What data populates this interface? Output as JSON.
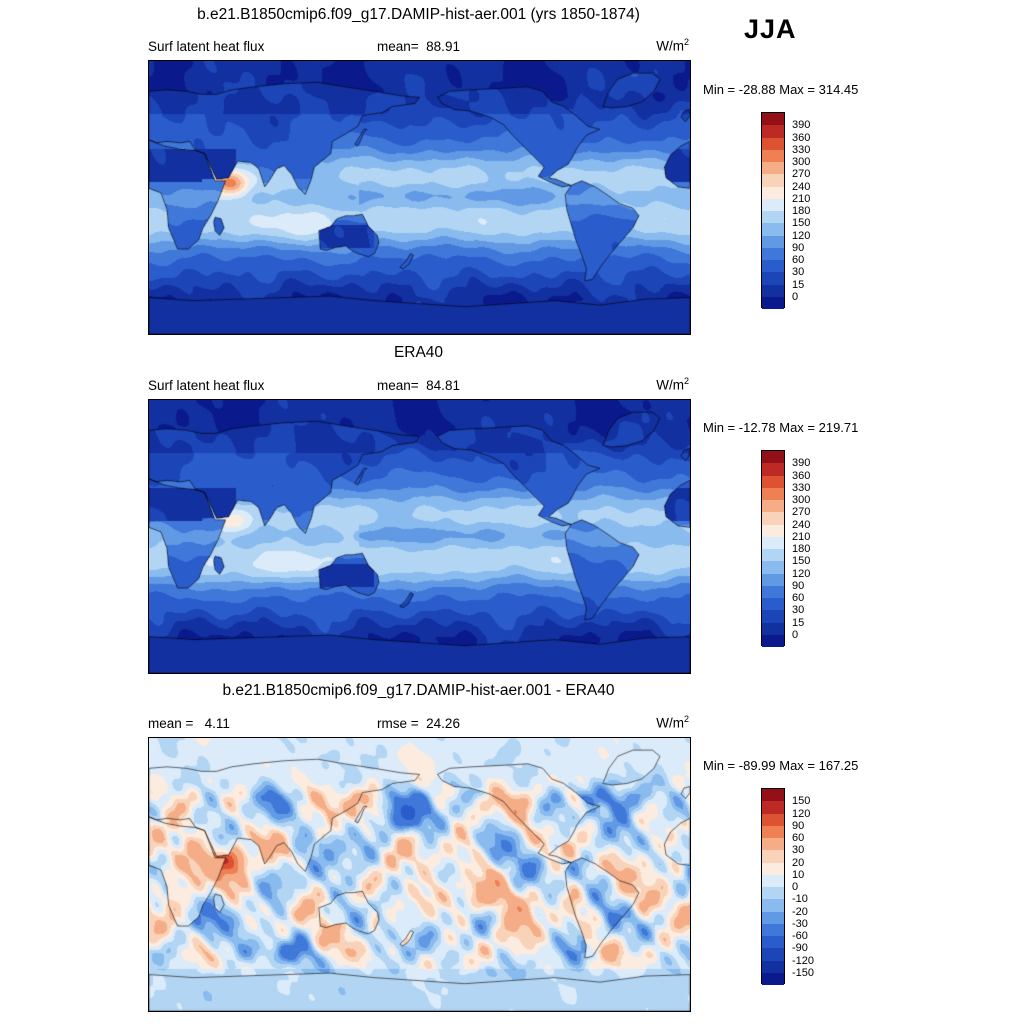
{
  "header": {
    "season_label": "JJA"
  },
  "palette": {
    "colors": [
      "#0a1a8c",
      "#12309f",
      "#1c45b8",
      "#2a5ccb",
      "#3f78d9",
      "#6199e4",
      "#89bbee",
      "#b2d5f4",
      "#dcebf9",
      "#fcecdf",
      "#f9d3b9",
      "#f5ad87",
      "#ee8054",
      "#dc5233",
      "#bd2a25",
      "#931019"
    ]
  },
  "panel1": {
    "title": "b.e21.B1850cmip6.f09_g17.DAMIP-hist-aer.001 (yrs 1850-1874)",
    "field_label": "Surf latent heat flux",
    "mean_label": "mean=  88.91",
    "units_base": "W/m",
    "units_exp": "2",
    "minmax_label": "Min = -28.88 Max = 314.45",
    "levels": [
      0,
      15,
      30,
      60,
      90,
      120,
      150,
      180,
      210,
      240,
      270,
      300,
      330,
      360,
      390
    ]
  },
  "panel2": {
    "title": "ERA40",
    "field_label": "Surf latent heat flux",
    "mean_label": "mean=  84.81",
    "units_base": "W/m",
    "units_exp": "2",
    "minmax_label": "Min = -12.78 Max = 219.71",
    "levels": [
      0,
      15,
      30,
      60,
      90,
      120,
      150,
      180,
      210,
      240,
      270,
      300,
      330,
      360,
      390
    ]
  },
  "panel3": {
    "title": "b.e21.B1850cmip6.f09_g17.DAMIP-hist-aer.001 - ERA40",
    "mean_label": "mean =   4.11",
    "rmse_label": "rmse =  24.26",
    "units_base": "W/m",
    "units_exp": "2",
    "minmax_label": "Min = -89.99 Max = 167.25",
    "levels": [
      -150,
      -120,
      -90,
      -60,
      -30,
      -20,
      -10,
      0,
      10,
      20,
      30,
      60,
      90,
      120,
      150
    ]
  },
  "chart_data": [
    {
      "type": "heatmap",
      "title": "b.e21.B1850cmip6.f09_g17.DAMIP-hist-aer.001 (yrs 1850-1874)",
      "variable": "Surf latent heat flux",
      "season": "JJA",
      "units": "W/m2",
      "mean": 88.91,
      "min": -28.88,
      "max": 314.45,
      "contour_levels": [
        0,
        15,
        30,
        60,
        90,
        120,
        150,
        180,
        210,
        240,
        270,
        300,
        330,
        360,
        390
      ],
      "legend_position": "right",
      "projection": "global latitude-longitude map"
    },
    {
      "type": "heatmap",
      "title": "ERA40",
      "variable": "Surf latent heat flux",
      "season": "JJA",
      "units": "W/m2",
      "mean": 84.81,
      "min": -12.78,
      "max": 219.71,
      "contour_levels": [
        0,
        15,
        30,
        60,
        90,
        120,
        150,
        180,
        210,
        240,
        270,
        300,
        330,
        360,
        390
      ],
      "legend_position": "right",
      "projection": "global latitude-longitude map"
    },
    {
      "type": "heatmap",
      "title": "b.e21.B1850cmip6.f09_g17.DAMIP-hist-aer.001 - ERA40",
      "season": "JJA",
      "units": "W/m2",
      "mean": 4.11,
      "rmse": 24.26,
      "min": -89.99,
      "max": 167.25,
      "contour_levels": [
        -150,
        -120,
        -90,
        -60,
        -30,
        -20,
        -10,
        0,
        10,
        20,
        30,
        60,
        90,
        120,
        150
      ],
      "legend_position": "right",
      "projection": "global latitude-longitude map"
    }
  ]
}
